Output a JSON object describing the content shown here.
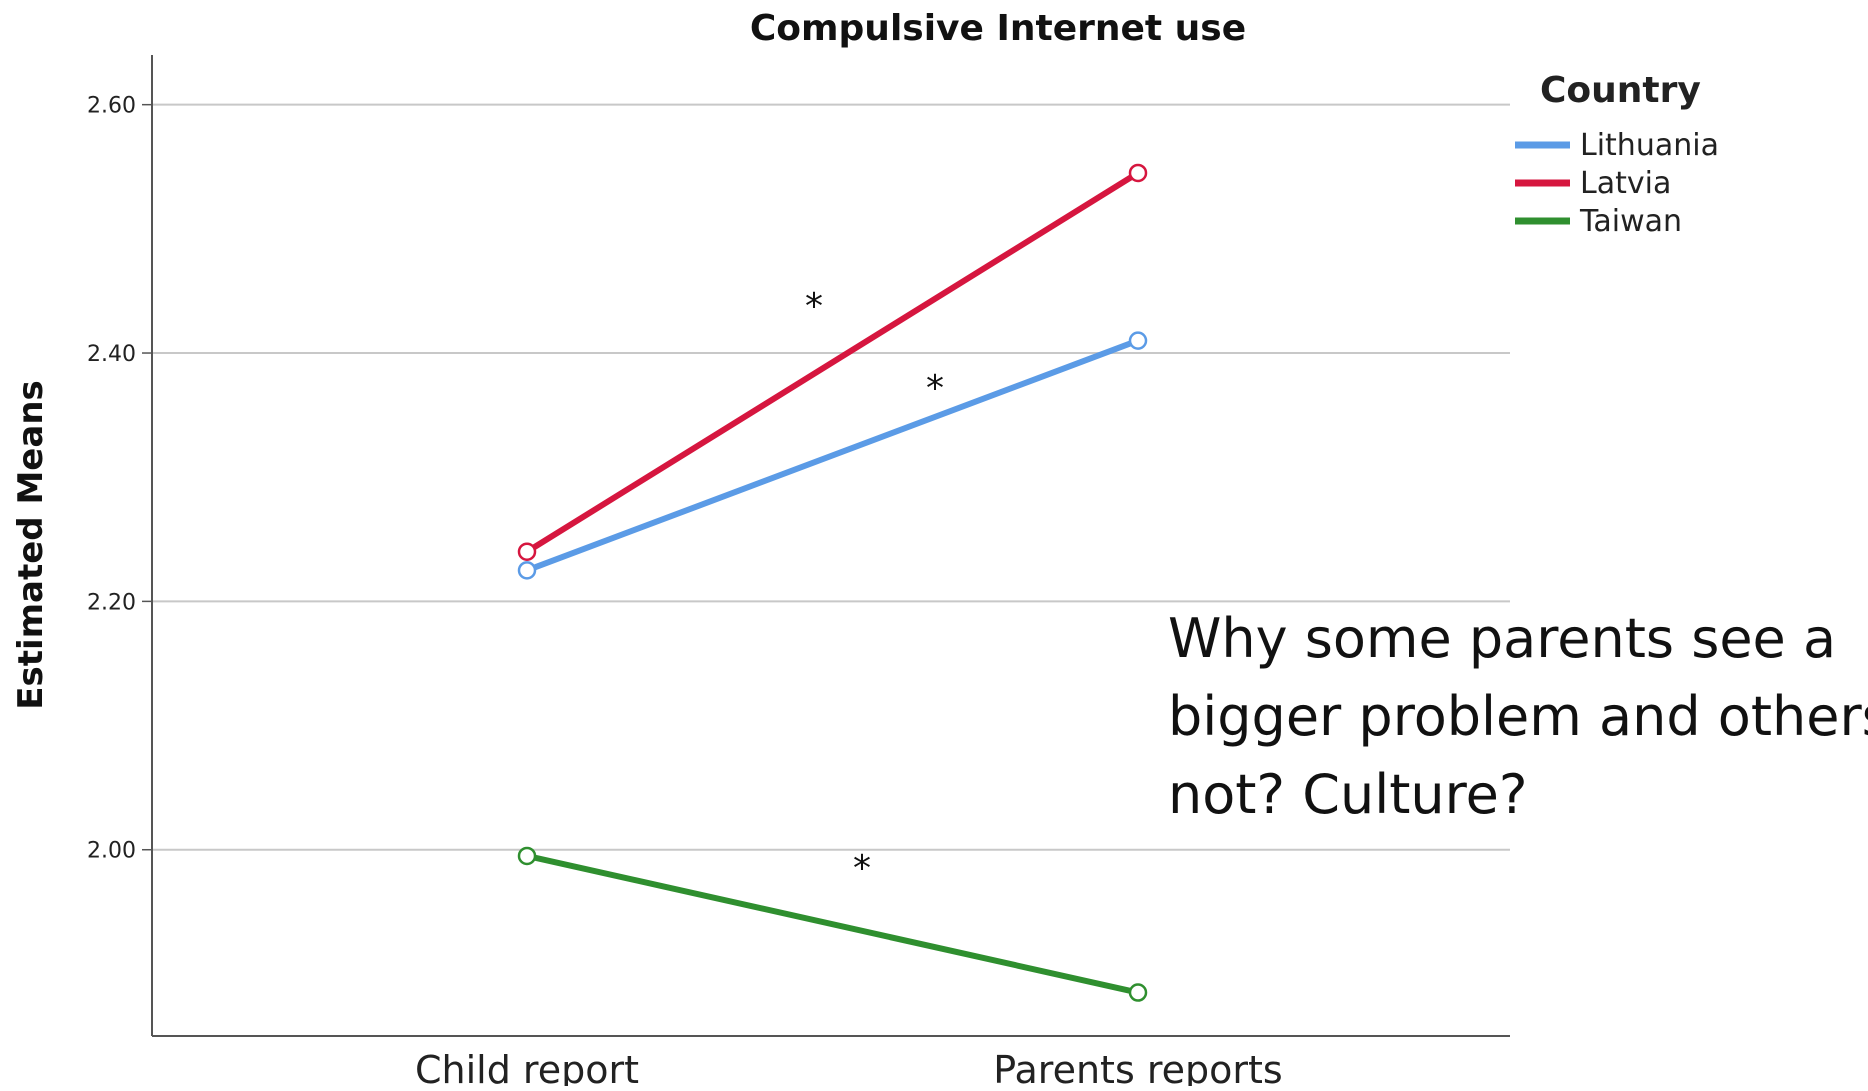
{
  "chart_data": {
    "type": "line",
    "title": "Compulsive Internet use",
    "xlabel": "",
    "ylabel": "Estimated Means",
    "categories": [
      "Child report",
      "Parents reports"
    ],
    "ylim": [
      1.85,
      2.64
    ],
    "yticks": [
      "2.00",
      "2.20",
      "2.40",
      "2.60"
    ],
    "grid": "horizontal",
    "legend": {
      "title": "Country",
      "placement": "top-right"
    },
    "series": [
      {
        "name": "Lithuania",
        "color": "#5b9be6",
        "values": [
          2.225,
          2.41
        ]
      },
      {
        "name": "Latvia",
        "color": "#d6163f",
        "values": [
          2.24,
          2.545
        ]
      },
      {
        "name": "Taiwan",
        "color": "#2f8f2f",
        "values": [
          1.995,
          1.885
        ]
      }
    ],
    "significance_markers": [
      {
        "series": "Latvia",
        "label": "*"
      },
      {
        "series": "Lithuania",
        "label": "*"
      },
      {
        "series": "Taiwan",
        "label": "*"
      }
    ]
  },
  "annotation": {
    "lines": [
      "Why some parents see a",
      "bigger problem and others",
      "not? Culture?"
    ]
  }
}
